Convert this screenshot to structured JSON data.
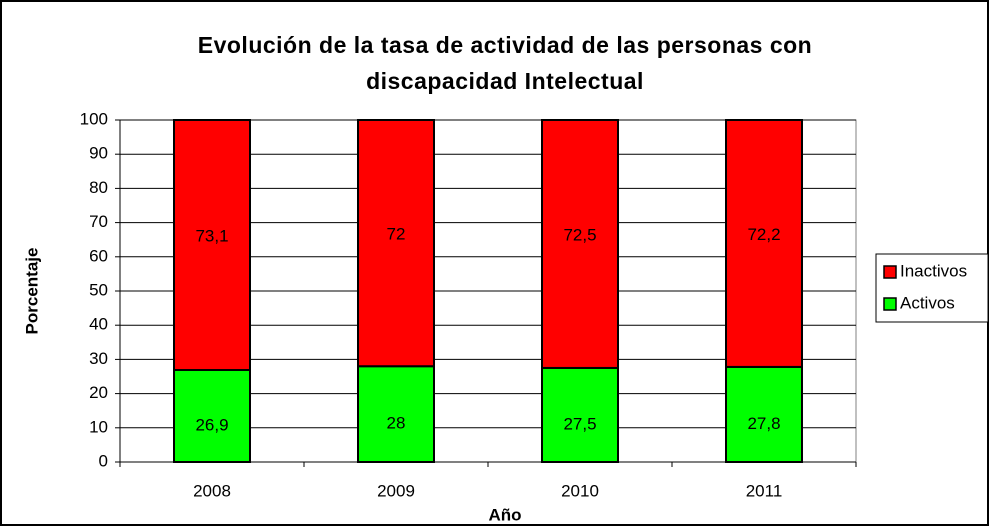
{
  "chart_data": {
    "type": "stacked_bar",
    "title": [
      "Evolución de la tasa de actividad de las personas con",
      "discapacidad Intelectual"
    ],
    "x_label": "Año",
    "y_label": "Porcentaje",
    "categories": [
      "2008",
      "2009",
      "2010",
      "2011"
    ],
    "series": [
      {
        "name": "Activos",
        "color": "#00ff00",
        "values": [
          26.9,
          28,
          27.5,
          27.8
        ],
        "value_labels": [
          "26,9",
          "28",
          "27,5",
          "27,8"
        ]
      },
      {
        "name": "Inactivos",
        "color": "#ff0000",
        "values": [
          73.1,
          72,
          72.5,
          72.2
        ],
        "value_labels": [
          "73,1",
          "72",
          "72,5",
          "72,2"
        ]
      }
    ],
    "ylim": [
      0,
      100
    ],
    "yticks": [
      0,
      10,
      20,
      30,
      40,
      50,
      60,
      70,
      80,
      90,
      100
    ],
    "grid": true,
    "legend": "right"
  }
}
